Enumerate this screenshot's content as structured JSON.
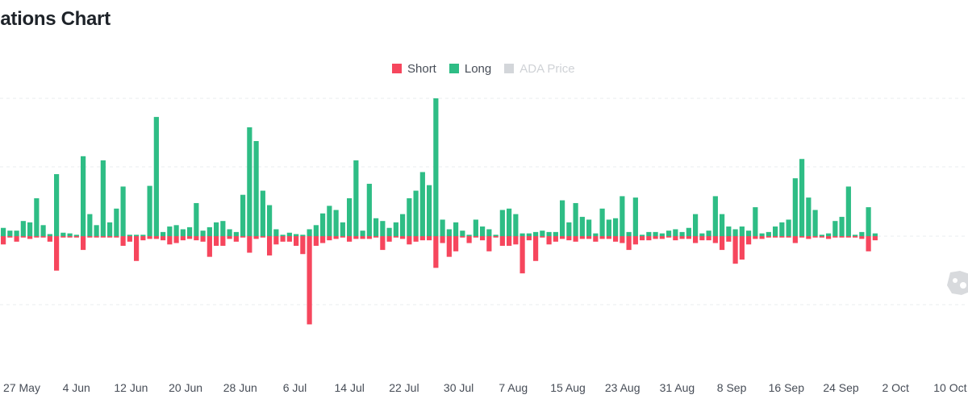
{
  "title": "lations Chart",
  "legend": [
    {
      "label": "Short",
      "color": "#f6465d",
      "active": true
    },
    {
      "label": "Long",
      "color": "#2ebd85",
      "active": true
    },
    {
      "label": "ADA Price",
      "color": "#d3d6da",
      "active": false
    }
  ],
  "colors": {
    "short": "#f6465d",
    "long": "#2ebd85",
    "grid": "#eaecef",
    "axis_text": "#474d57"
  },
  "watermark_icon": "logo-watermark-icon",
  "chart_data": {
    "type": "bar",
    "stacked_around_zero": true,
    "grid": true,
    "legend_placement": "top-center",
    "x_tick_labels": [
      "27 May",
      "4 Jun",
      "12 Jun",
      "20 Jun",
      "28 Jun",
      "6 Jul",
      "14 Jul",
      "22 Jul",
      "30 Jul",
      "7 Aug",
      "15 Aug",
      "23 Aug",
      "31 Aug",
      "8 Sep",
      "16 Sep",
      "24 Sep",
      "2 Oct",
      "10 Oct"
    ],
    "ylim": [
      -1.74,
      2.0
    ],
    "series": [
      {
        "name": "Long",
        "values": [
          0.12,
          0.08,
          0.08,
          0.22,
          0.2,
          0.55,
          0.16,
          0.03,
          0.9,
          0.05,
          0.04,
          0.02,
          1.16,
          0.32,
          0.16,
          1.1,
          0.2,
          0.4,
          0.72,
          0.02,
          0.02,
          0.02,
          0.73,
          1.73,
          0.06,
          0.14,
          0.16,
          0.1,
          0.13,
          0.48,
          0.08,
          0.13,
          0.2,
          0.22,
          0.1,
          0.06,
          0.6,
          1.58,
          1.38,
          0.66,
          0.45,
          0.1,
          0.02,
          0.05,
          0.03,
          0.02,
          0.1,
          0.16,
          0.33,
          0.44,
          0.38,
          0.2,
          0.55,
          1.1,
          0.08,
          0.76,
          0.26,
          0.22,
          0.12,
          0.2,
          0.32,
          0.55,
          0.66,
          0.93,
          0.74,
          2.0,
          0.24,
          0.1,
          0.2,
          0.08,
          0.02,
          0.24,
          0.14,
          0.1,
          0.02,
          0.38,
          0.4,
          0.32,
          0.04,
          0.04,
          0.06,
          0.08,
          0.06,
          0.06,
          0.52,
          0.2,
          0.48,
          0.28,
          0.24,
          0.04,
          0.4,
          0.24,
          0.26,
          0.58,
          0.06,
          0.56,
          0.02,
          0.06,
          0.06,
          0.04,
          0.08,
          0.1,
          0.06,
          0.12,
          0.32,
          0.04,
          0.08,
          0.58,
          0.32,
          0.14,
          0.1,
          0.14,
          0.08,
          0.42,
          0.04,
          0.06,
          0.14,
          0.2,
          0.24,
          0.84,
          1.12,
          0.56,
          0.38,
          0.02,
          0.04,
          0.22,
          0.28,
          0.72,
          0.02,
          0.06,
          0.42,
          0.04
        ],
        "color": "#2ebd85"
      },
      {
        "name": "Short",
        "values": [
          0.12,
          0.02,
          0.08,
          0.02,
          0.04,
          0.02,
          0.02,
          0.08,
          0.5,
          0.02,
          0.02,
          0.02,
          0.2,
          0.02,
          0.02,
          0.02,
          0.02,
          0.02,
          0.14,
          0.08,
          0.36,
          0.06,
          0.04,
          0.04,
          0.06,
          0.12,
          0.1,
          0.06,
          0.04,
          0.06,
          0.08,
          0.3,
          0.14,
          0.14,
          0.04,
          0.08,
          0.02,
          0.24,
          0.04,
          0.02,
          0.28,
          0.12,
          0.08,
          0.08,
          0.14,
          0.26,
          1.28,
          0.14,
          0.1,
          0.06,
          0.04,
          0.02,
          0.08,
          0.04,
          0.04,
          0.04,
          0.02,
          0.2,
          0.08,
          0.02,
          0.04,
          0.12,
          0.08,
          0.06,
          0.06,
          0.46,
          0.1,
          0.3,
          0.22,
          0.02,
          0.1,
          0.02,
          0.06,
          0.22,
          0.02,
          0.14,
          0.14,
          0.12,
          0.54,
          0.06,
          0.36,
          0.02,
          0.12,
          0.08,
          0.04,
          0.06,
          0.08,
          0.04,
          0.04,
          0.08,
          0.04,
          0.04,
          0.08,
          0.1,
          0.2,
          0.12,
          0.06,
          0.06,
          0.04,
          0.04,
          0.02,
          0.06,
          0.04,
          0.04,
          0.1,
          0.06,
          0.06,
          0.1,
          0.2,
          0.08,
          0.4,
          0.34,
          0.12,
          0.04,
          0.04,
          0.02,
          0.02,
          0.02,
          0.02,
          0.1,
          0.02,
          0.04,
          0.02,
          0.02,
          0.04,
          0.02,
          0.02,
          0.02,
          0.02,
          0.04,
          0.22,
          0.06
        ],
        "color": "#f6465d"
      }
    ]
  }
}
